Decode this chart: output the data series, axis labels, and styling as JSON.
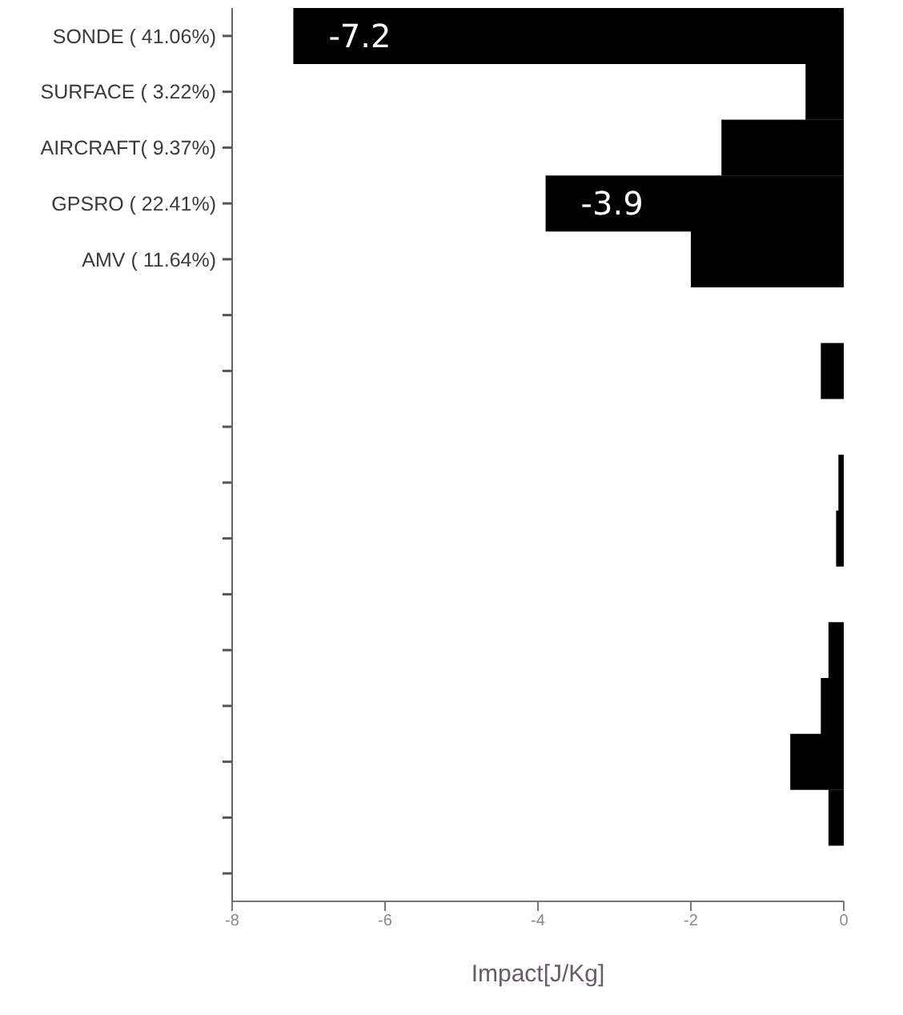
{
  "chart_data": {
    "type": "bar",
    "orientation": "horizontal",
    "categories": [
      "SONDE ( 41.06%)",
      "SURFACE ( 3.22%)",
      "AIRCRAFT( 9.37%)",
      "GPSRO ( 22.41%)",
      "AMV ( 11.64%)",
      null,
      null,
      null,
      null,
      null,
      null,
      null,
      null,
      null,
      null,
      null
    ],
    "values": [
      -7.2,
      -0.5,
      -1.6,
      -3.9,
      -2.0,
      0,
      -0.3,
      0,
      -0.07,
      -0.1,
      0,
      -0.2,
      -0.3,
      -0.7,
      -0.2,
      0
    ],
    "value_labels": [
      "-7.2",
      null,
      null,
      "-3.9",
      null,
      null,
      null,
      null,
      null,
      null,
      null,
      null,
      null,
      null,
      null,
      null
    ],
    "color": "#000000",
    "xlim": [
      -8,
      0
    ],
    "xticks": [
      -8,
      -6,
      -4,
      -2,
      0
    ],
    "xlabel": "Impact[J/Kg]"
  }
}
